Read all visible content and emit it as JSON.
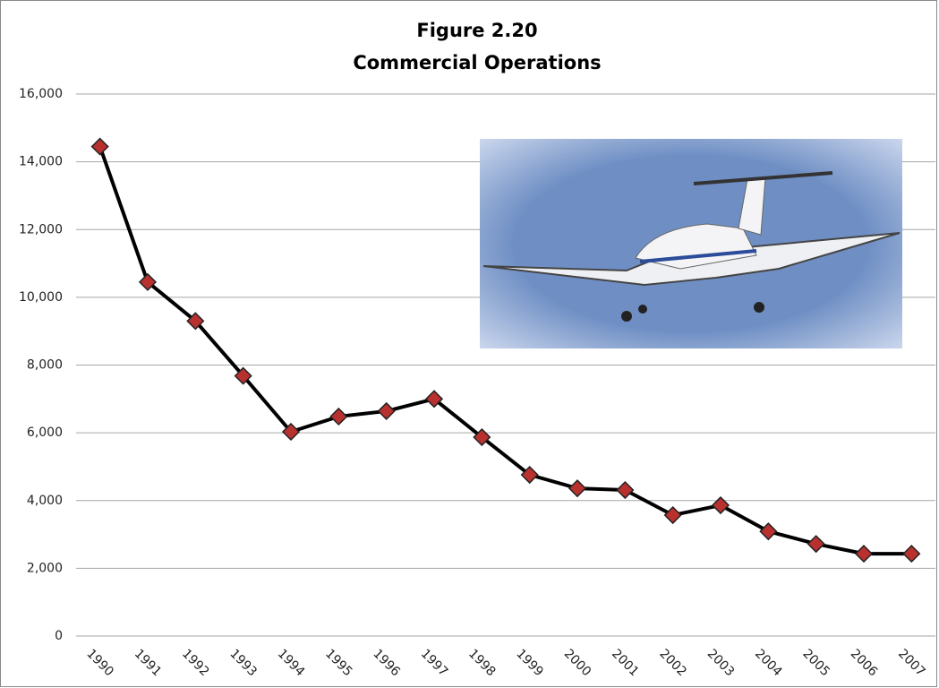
{
  "chart_data": {
    "type": "line",
    "title": "Figure 2.20",
    "subtitle": "Commercial Operations",
    "categories": [
      "1990",
      "1991",
      "1992",
      "1993",
      "1994",
      "1995",
      "1996",
      "1997",
      "1998",
      "1999",
      "2000",
      "2001",
      "2002",
      "2003",
      "2004",
      "2005",
      "2006",
      "2007"
    ],
    "series": [
      {
        "name": "Commercial Operations",
        "color": "#000000",
        "marker_color": "#b8312f",
        "values": [
          14450,
          10450,
          9300,
          7680,
          6030,
          6480,
          6640,
          7000,
          5870,
          4760,
          4360,
          4310,
          3570,
          3860,
          3090,
          2720,
          2430,
          2430
        ]
      }
    ],
    "ylim": [
      0,
      16000
    ],
    "yticks": [
      0,
      {
        "value": 2000,
        "label": "2,000"
      },
      {
        "value": 4000,
        "label": "4,000"
      },
      {
        "value": 6000,
        "label": "6,000"
      },
      {
        "value": 8000,
        "label": "8,000"
      },
      {
        "value": 10000,
        "label": "10,000"
      },
      {
        "value": 12000,
        "label": "12,000"
      },
      {
        "value": 14000,
        "label": "14,000"
      },
      {
        "value": 16000,
        "label": "16,000"
      }
    ],
    "grid": true
  }
}
